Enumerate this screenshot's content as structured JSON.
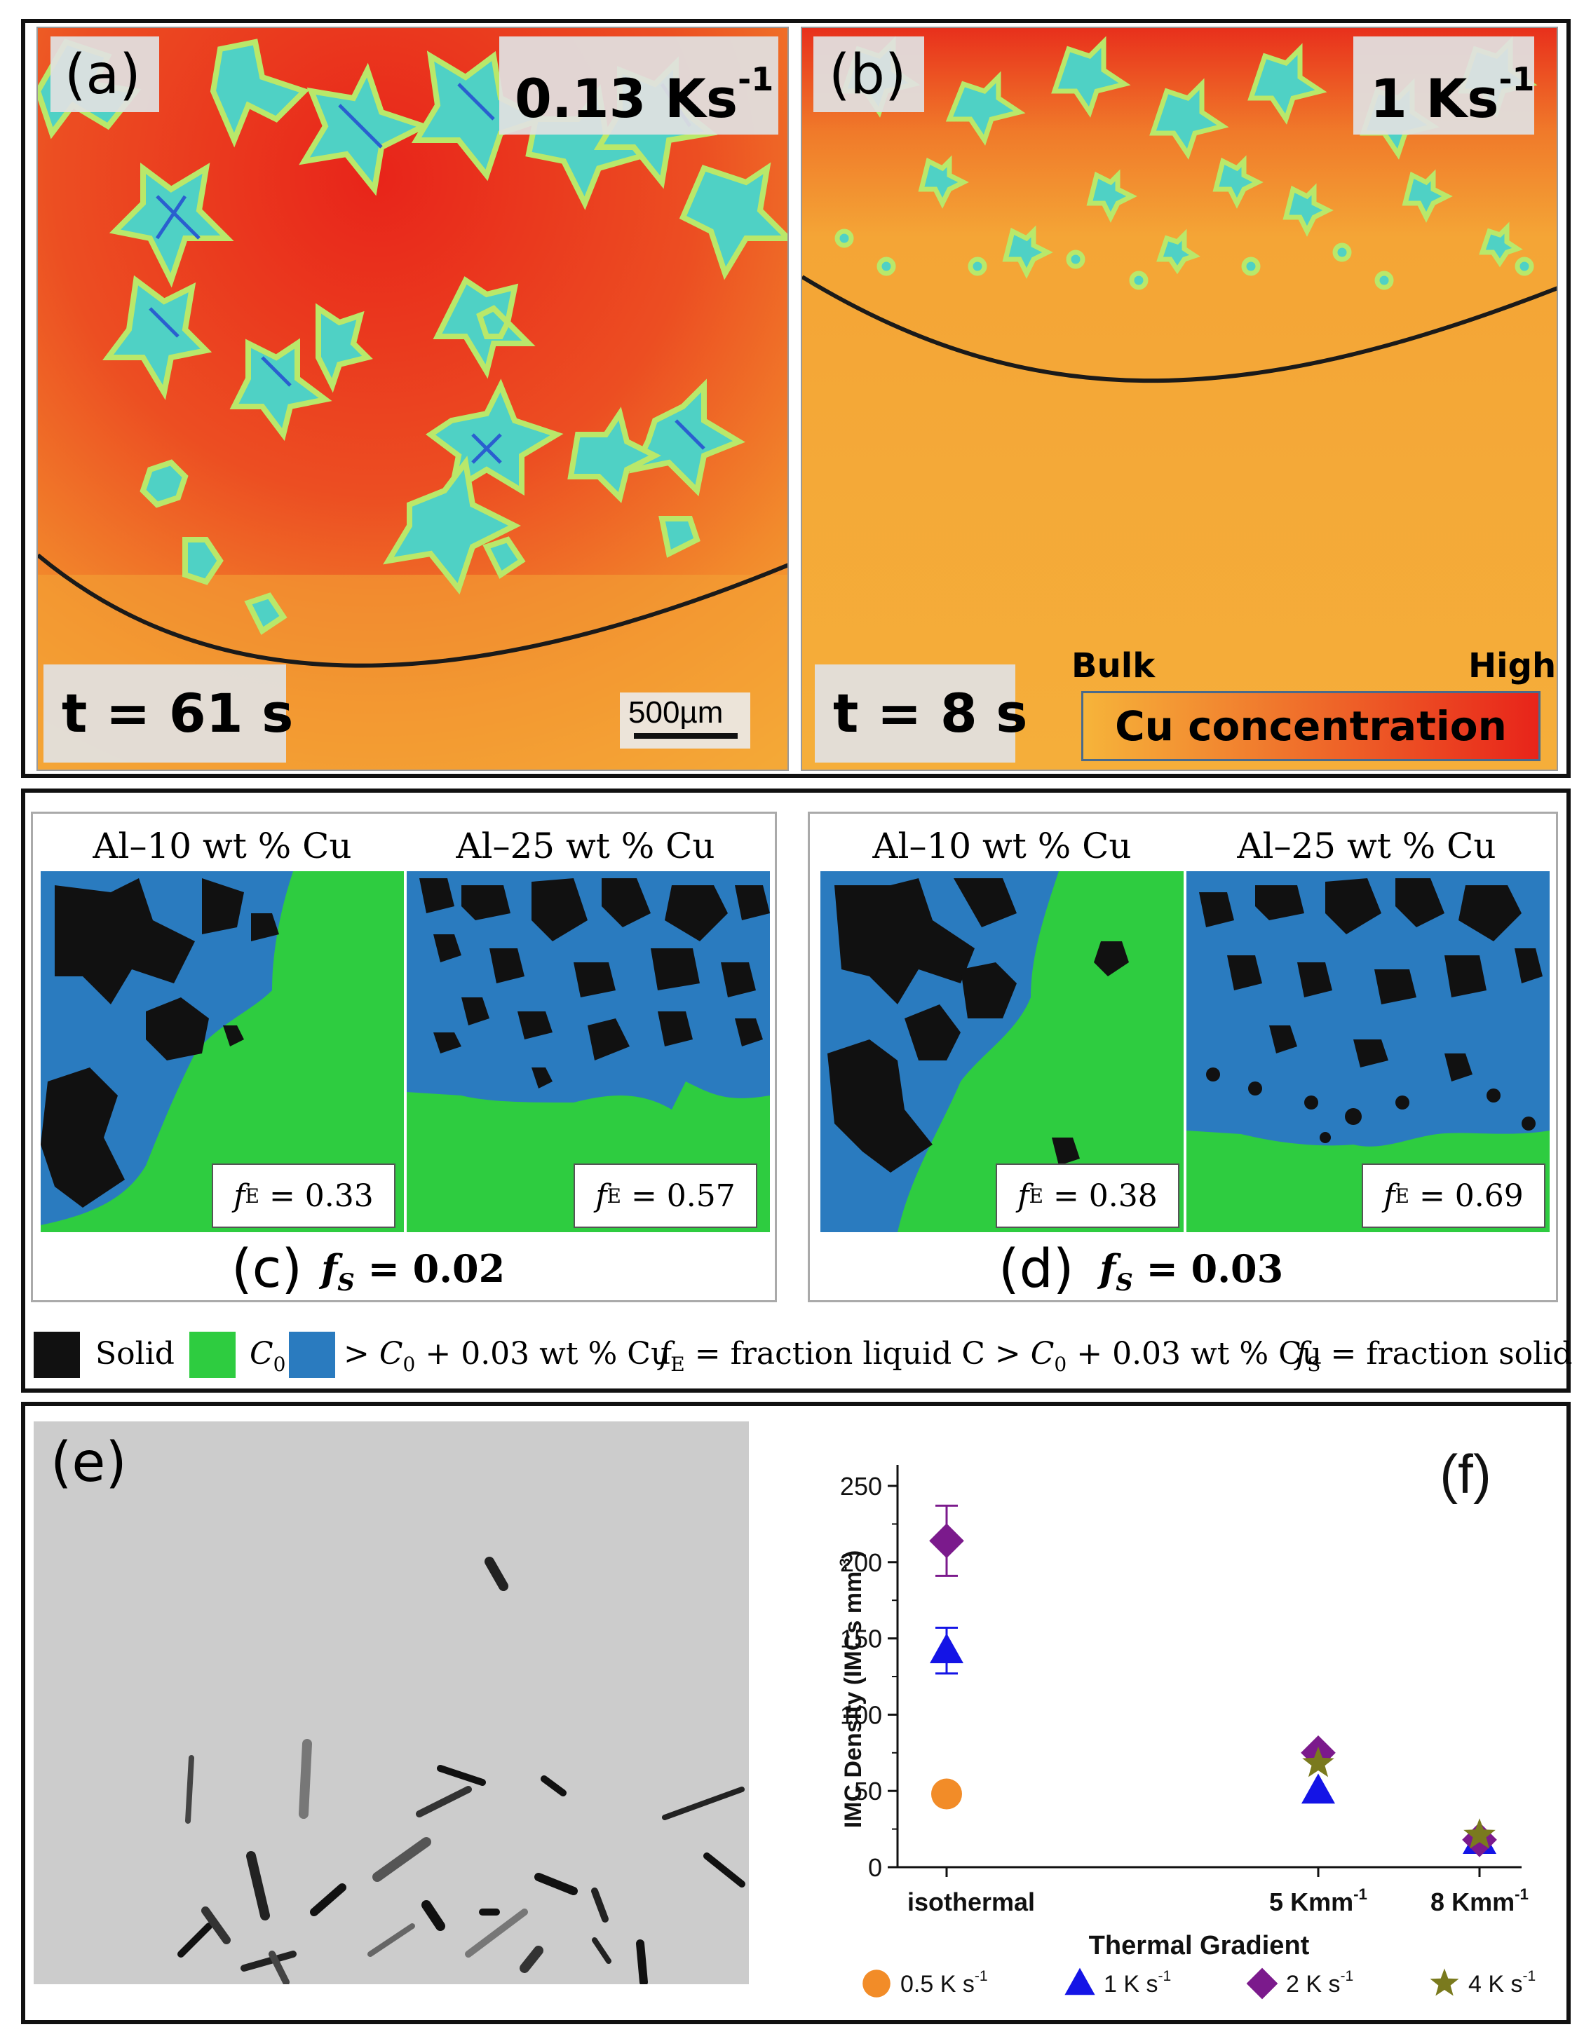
{
  "panel_a": {
    "letter": "(a)",
    "rate_value": "0.13 Ks",
    "rate_sup": "-1",
    "time": "t = 61 s",
    "scale_bar": "500µm"
  },
  "panel_b": {
    "letter": "(b)",
    "rate_value": "1 Ks",
    "rate_sup": "-1",
    "time": "t = 8 s",
    "colorbar": {
      "low": "Bulk",
      "high": "High",
      "title": "Cu concentration",
      "color_low": "#f6b43a",
      "color_high": "#e8241a"
    }
  },
  "panel_c": {
    "letter": "(c)",
    "left_title": "Al–10 wt % Cu",
    "right_title": "Al–25 wt % Cu",
    "left_fe_sym": "f",
    "left_fe_sub": "E",
    "left_fe_val": " = 0.33",
    "right_fe_sym": "f",
    "right_fe_sub": "E",
    "right_fe_val": " = 0.57",
    "fs_sym": "f",
    "fs_sub": "S",
    "fs_val": " = 0.02"
  },
  "panel_d": {
    "letter": "(d)",
    "left_title": "Al–10 wt % Cu",
    "right_title": "Al–25 wt % Cu",
    "left_fe_sym": "f",
    "left_fe_sub": "E",
    "left_fe_val": " = 0.38",
    "right_fe_sym": "f",
    "right_fe_sub": "E",
    "right_fe_val": " = 0.69",
    "fs_sym": "f",
    "fs_sub": "S",
    "fs_val": " = 0.03"
  },
  "legend_cd": {
    "solid": "Solid",
    "c0_sym": "C",
    "c0_sub": "0",
    "high_pre": "> ",
    "high_sym": "C",
    "high_sub": "0",
    "high_post": " + 0.03 wt % Cu",
    "fe_sym": "f",
    "fe_sub": "E",
    "fe_def_a": " = fraction liquid C > ",
    "fe_def_sym": "C",
    "fe_def_sub": "0",
    "fe_def_b": " + 0.03 wt % Cu",
    "fs_sym": "f",
    "fs_sub": "S",
    "fs_def": " = fraction solid",
    "colors": {
      "solid": "#111111",
      "c0": "#2ecc40",
      "high": "#2a7bbf"
    }
  },
  "panel_e": {
    "letter": "(e)"
  },
  "chart_data": {
    "type": "scatter",
    "panel_letter": "(f)",
    "xlabel": "Thermal Gradient",
    "ylabel_main": "IMC Density (IMCs mm",
    "ylabel_sup": "-3",
    "ylabel_close": ")",
    "ylim": [
      0,
      250
    ],
    "yticks": [
      0,
      50,
      100,
      150,
      200,
      250
    ],
    "categories": [
      {
        "label": "isothermal",
        "sup": ""
      },
      {
        "label": "5 Kmm",
        "sup": "-1"
      },
      {
        "label": "8 Kmm",
        "sup": "-1"
      }
    ],
    "series": [
      {
        "name": "0.5 K s",
        "sup": "-1",
        "marker": "circle",
        "color": "#f28c28",
        "values": [
          48,
          null,
          null
        ],
        "errors": [
          3,
          null,
          null
        ]
      },
      {
        "name": "1 K s",
        "sup": "-1",
        "marker": "triangle",
        "color": "#1414e6",
        "values": [
          142,
          50,
          17
        ],
        "errors": [
          15,
          0,
          0
        ]
      },
      {
        "name": "2 K s",
        "sup": "-1",
        "marker": "diamond",
        "color": "#7b1a8c",
        "values": [
          214,
          75,
          18
        ],
        "errors": [
          23,
          0,
          0
        ]
      },
      {
        "name": "4 K s",
        "sup": "-1",
        "marker": "star",
        "color": "#7a7a1e",
        "values": [
          null,
          68,
          21
        ],
        "errors": [
          null,
          0,
          0
        ]
      }
    ]
  }
}
